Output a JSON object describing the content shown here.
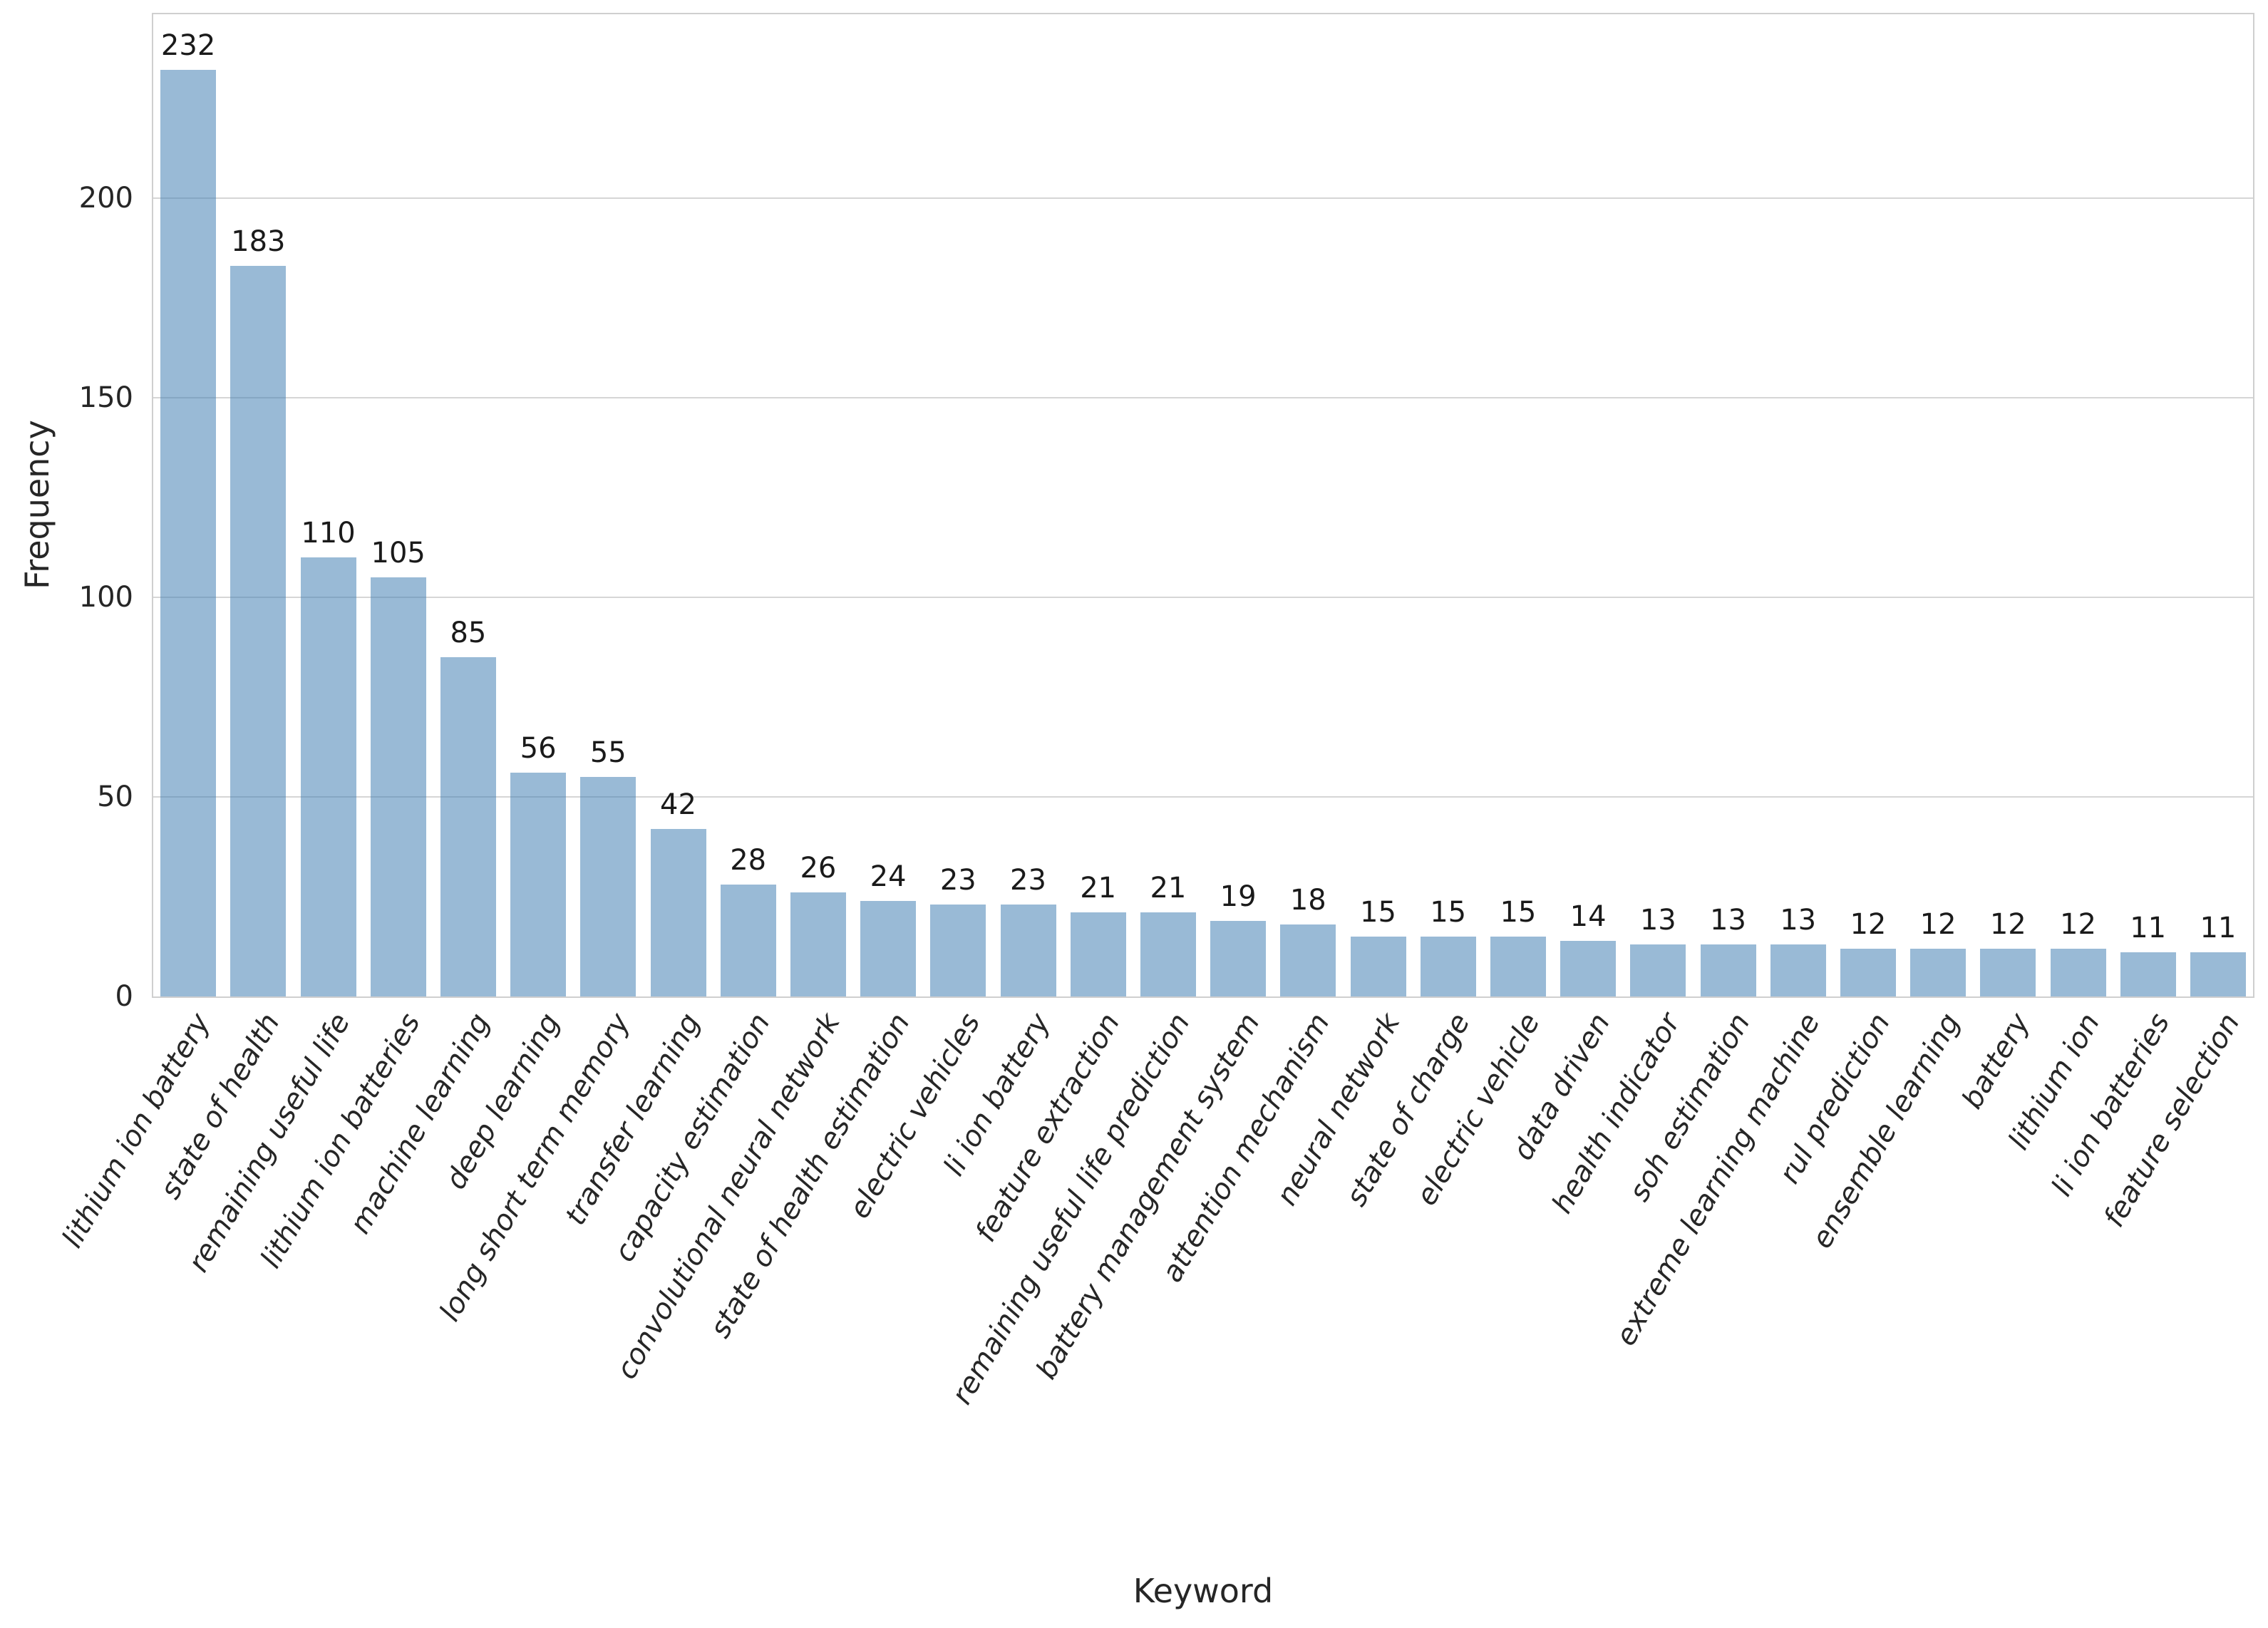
{
  "chart_data": {
    "type": "bar",
    "title": "",
    "xlabel": "Keyword",
    "ylabel": "Frequency",
    "categories": [
      "lithium ion battery",
      "state of health",
      "remaining useful life",
      "lithium ion batteries",
      "machine learning",
      "deep learning",
      "long short term memory",
      "transfer learning",
      "capacity estimation",
      "convolutional neural network",
      "state of health estimation",
      "electric vehicles",
      "li ion battery",
      "feature extraction",
      "remaining useful life prediction",
      "battery management system",
      "attention mechanism",
      "neural network",
      "state of charge",
      "electric vehicle",
      "data driven",
      "health indicator",
      "soh estimation",
      "extreme learning machine",
      "rul prediction",
      "ensemble learning",
      "battery",
      "lithium ion",
      "li ion batteries",
      "feature selection"
    ],
    "values": [
      232,
      183,
      110,
      105,
      85,
      56,
      55,
      42,
      28,
      26,
      24,
      23,
      23,
      21,
      21,
      19,
      18,
      15,
      15,
      15,
      14,
      13,
      13,
      13,
      12,
      12,
      12,
      12,
      11,
      11
    ],
    "show_value_labels": true,
    "yticks": [
      0,
      50,
      100,
      150,
      200
    ],
    "ylim": [
      0,
      246
    ],
    "grid": "horizontal",
    "legend": "none",
    "bar_fill": "rgba(70,130,180,0.55)",
    "bar_color_hex": "#4682b4",
    "grid_color": "#d6d6d6",
    "spine_color": "#cfcfcf",
    "text_color": "#262626"
  }
}
